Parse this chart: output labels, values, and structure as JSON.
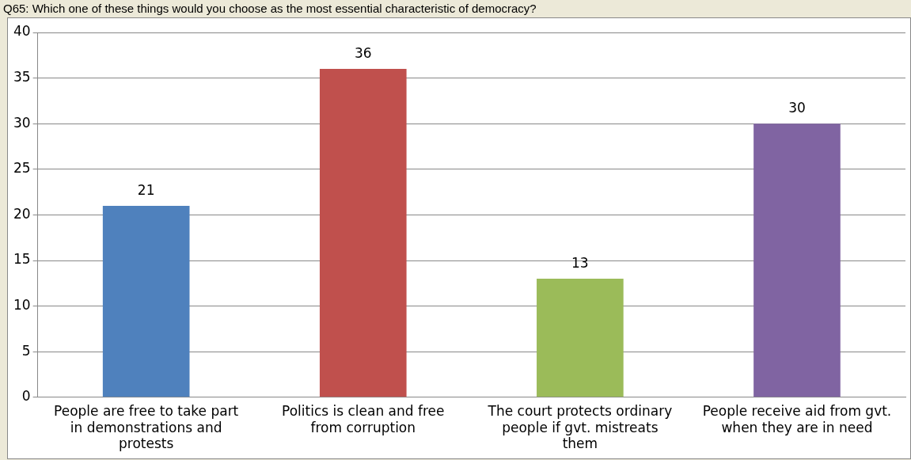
{
  "chart_data": {
    "type": "bar",
    "title": "Q65: Which one of these things would you choose as the most essential characteristic of democracy?",
    "categories": [
      "People are free to take part in demonstrations and protests",
      "Politics is clean and free from corruption",
      "The court protects ordinary people if gvt. mistreats them",
      "People receive aid from gvt. when they are in need"
    ],
    "values": [
      21,
      36,
      13,
      30
    ],
    "colors": [
      "#4f81bd",
      "#c0504d",
      "#9bbb59",
      "#8064a2"
    ],
    "ylim": [
      0,
      40
    ],
    "yticks": [
      0,
      5,
      10,
      15,
      20,
      25,
      30,
      35,
      40
    ],
    "grid": "y",
    "data_labels": true
  }
}
